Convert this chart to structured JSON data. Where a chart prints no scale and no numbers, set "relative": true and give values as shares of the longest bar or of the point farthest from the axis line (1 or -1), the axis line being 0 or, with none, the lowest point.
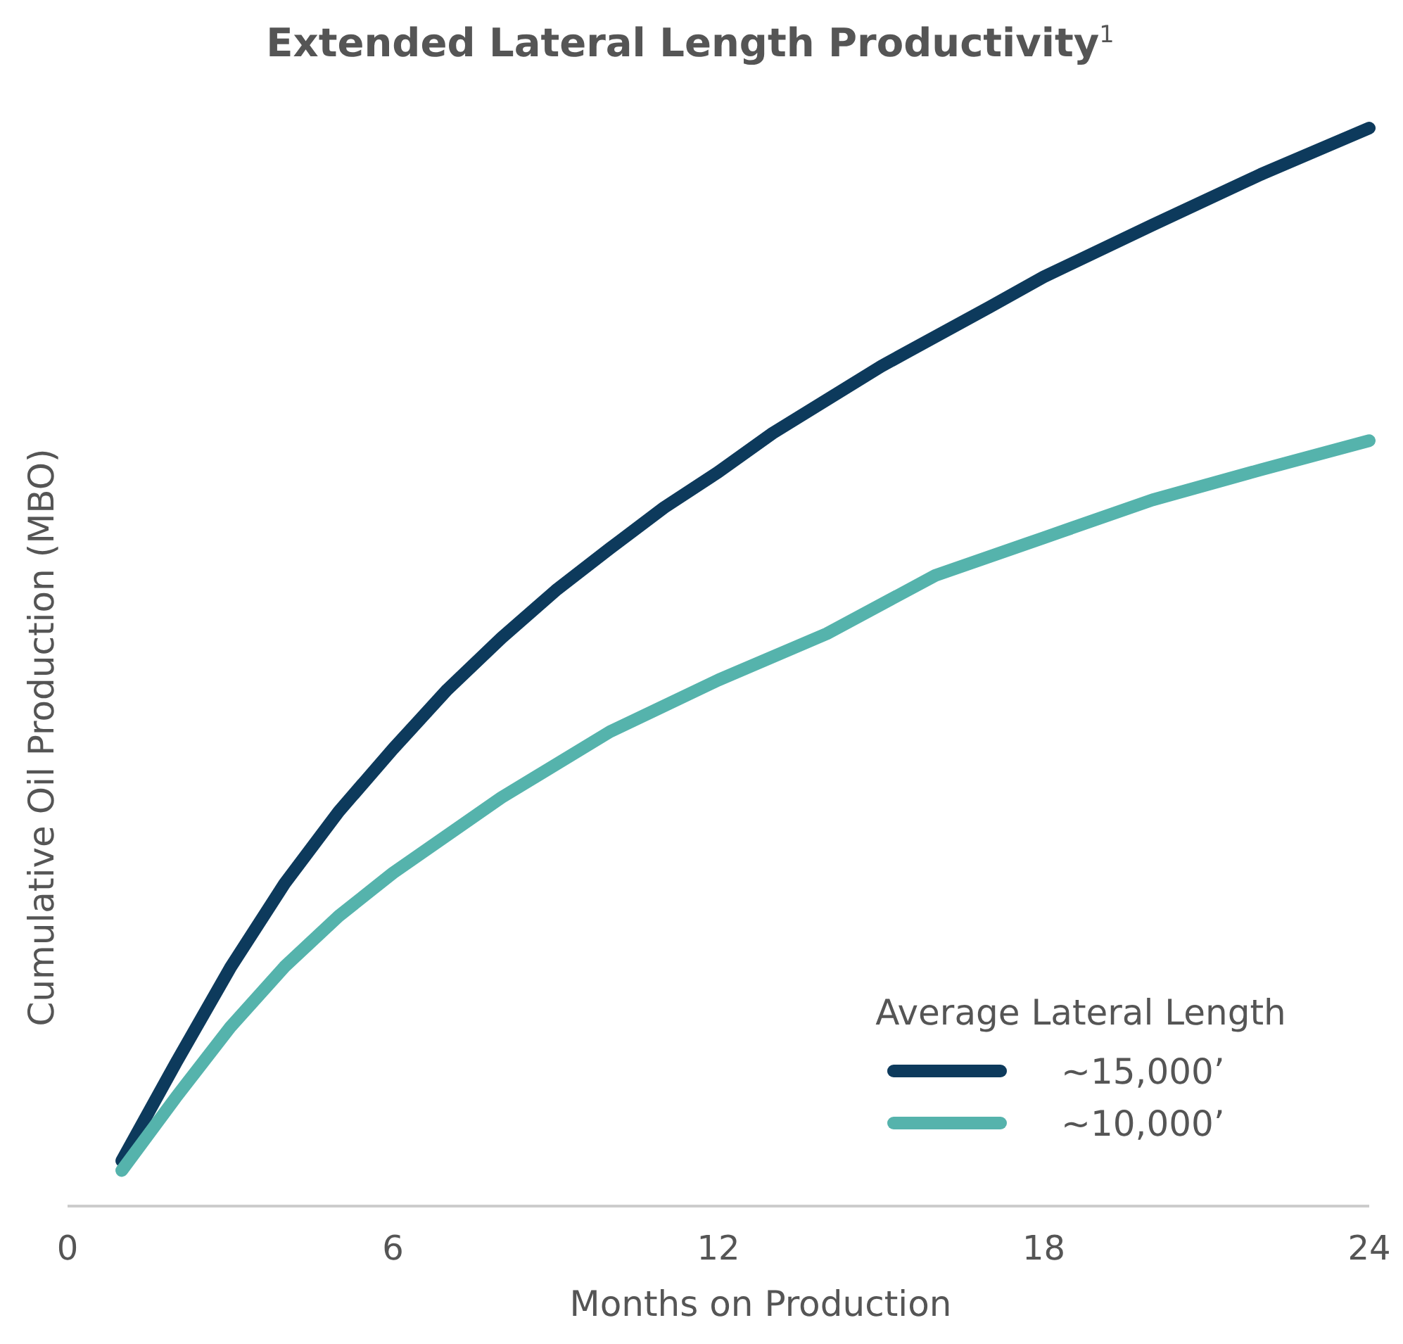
{
  "chart_data": {
    "type": "line",
    "title": "Extended Lateral Length Productivity$^{1}$",
    "xlabel": "Months on Production",
    "ylabel": "Cumulative Oil Production (MBO)",
    "relative": true,
    "xlim": [
      0,
      24
    ],
    "xticks": [
      0,
      6,
      12,
      18,
      24
    ],
    "legend": "bottom right",
    "legend_title": "Average Lateral Length",
    "grid": false,
    "marker": "none",
    "line_style": "solid",
    "series": [
      {
        "name": "~15,000’",
        "color": "#0d3a5c",
        "x": [
          1,
          2,
          3,
          4,
          5,
          6,
          7,
          8,
          9,
          10,
          11,
          12,
          13,
          15,
          17,
          18,
          20,
          22,
          24
        ],
        "values": [
          0.042,
          0.133,
          0.221,
          0.299,
          0.366,
          0.424,
          0.479,
          0.527,
          0.571,
          0.61,
          0.648,
          0.681,
          0.717,
          0.779,
          0.834,
          0.862,
          0.91,
          0.957,
          1
        ]
      },
      {
        "name": "~10,000’",
        "color": "#55b3ac",
        "x": [
          1,
          2,
          3,
          4,
          5,
          6,
          8,
          10,
          12,
          14,
          16,
          18,
          20,
          22,
          24
        ],
        "values": [
          0.033,
          0.101,
          0.166,
          0.222,
          0.269,
          0.309,
          0.379,
          0.44,
          0.488,
          0.531,
          0.585,
          0.62,
          0.655,
          0.683,
          0.71
        ]
      }
    ]
  }
}
